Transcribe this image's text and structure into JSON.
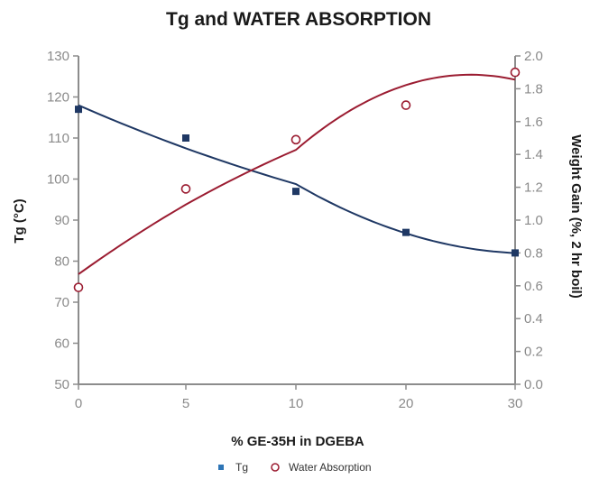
{
  "chart_data": {
    "type": "scatter",
    "title": "Tg and WATER ABSORPTION",
    "xlabel": "% GE-35H in DGEBA",
    "ylabel_left": "Tg (°C)",
    "ylabel_right": "Weight Gain (%, 2 hr boil)",
    "x_ticks": [
      "0",
      "5",
      "10",
      "20",
      "30"
    ],
    "x_tick_values": [
      0,
      5,
      10,
      20,
      30
    ],
    "y_left_ticks": [
      "50",
      "60",
      "70",
      "80",
      "90",
      "100",
      "110",
      "120",
      "130"
    ],
    "y_left_lim": [
      50,
      130
    ],
    "y_right_ticks": [
      "0.0",
      "0.2",
      "0.4",
      "0.6",
      "0.8",
      "1.0",
      "1.2",
      "1.4",
      "1.6",
      "1.8",
      "2.0"
    ],
    "y_right_lim": [
      0,
      2.0
    ],
    "grid": false,
    "legend_position": "bottom",
    "series": [
      {
        "name": "Tg",
        "axis": "left",
        "marker": "square",
        "marker_color": "#1f3864",
        "legend_color": "#2e75b6",
        "line_color": "#1f3864",
        "x": [
          0,
          5,
          10,
          20,
          30
        ],
        "y": [
          117,
          110,
          97,
          87,
          82
        ]
      },
      {
        "name": "Water Absorption",
        "axis": "right",
        "marker": "circle-open",
        "marker_color": "#9b1c31",
        "line_color": "#9b1c31",
        "x": [
          0,
          5,
          10,
          20,
          30
        ],
        "y": [
          0.59,
          1.19,
          1.49,
          1.7,
          1.9
        ]
      }
    ]
  }
}
